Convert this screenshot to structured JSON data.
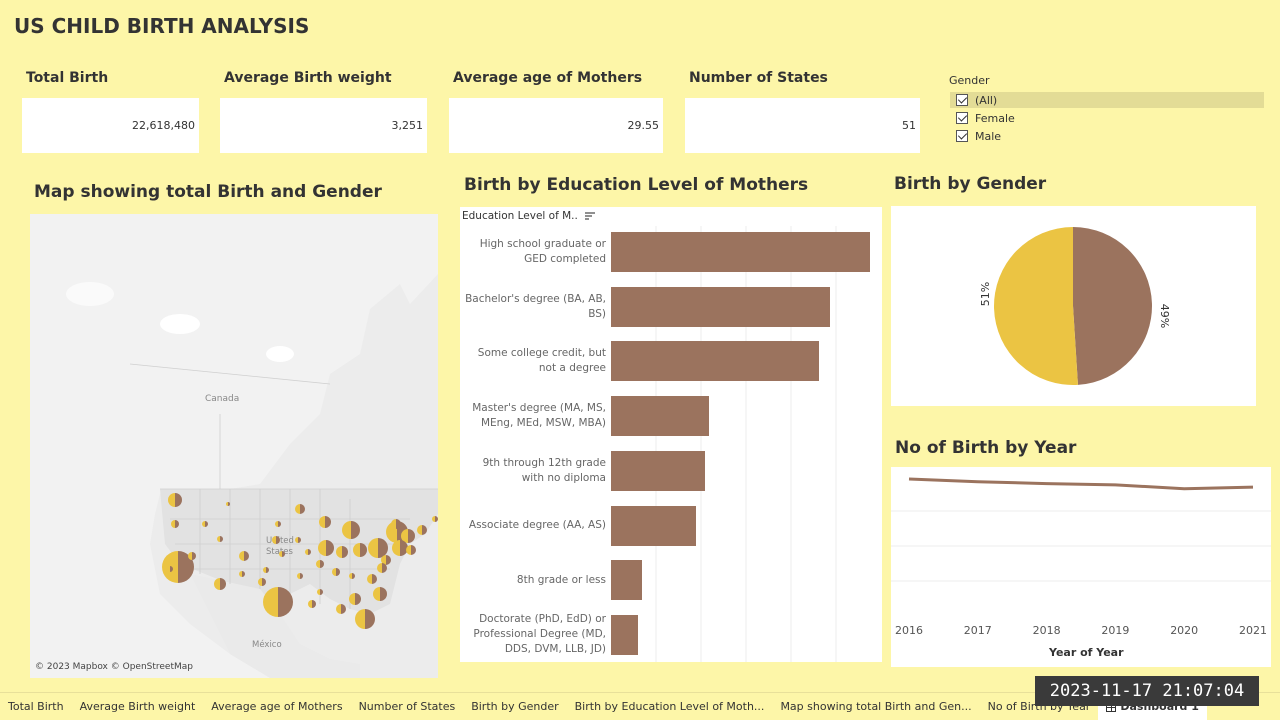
{
  "dashboard": {
    "title": "US CHILD BIRTH ANALYSIS"
  },
  "kpis": [
    {
      "label": "Total Birth",
      "value": "22,618,480"
    },
    {
      "label": "Average Birth weight",
      "value": "3,251"
    },
    {
      "label": "Average age of Mothers",
      "value": "29.55"
    },
    {
      "label": "Number of States",
      "value": "51"
    }
  ],
  "gender_filter": {
    "title": "Gender",
    "items": [
      {
        "label": "(All)",
        "checked": true,
        "selected": true
      },
      {
        "label": "Female",
        "checked": true
      },
      {
        "label": "Male",
        "checked": true
      }
    ]
  },
  "map": {
    "title": "Map showing total Birth and Gender",
    "labels": {
      "canada": "Canada",
      "us_line1": "United",
      "us_line2": "States",
      "mexico": "México"
    },
    "attribution": "© 2023 Mapbox © OpenStreetMap"
  },
  "education_chart": {
    "title": "Birth by Education Level of Mothers",
    "field_header": "Education Level of M..",
    "sort_icon": "sort-descending-icon"
  },
  "gender_chart": {
    "title": "Birth by Gender"
  },
  "year_chart": {
    "title": "No of Birth by Year",
    "xlabel": "Year of Year"
  },
  "colors": {
    "female": "#ebc443",
    "male": "#9b735e",
    "background": "#fdf6a8"
  },
  "tabs": [
    {
      "label": "Total Birth"
    },
    {
      "label": "Average Birth weight"
    },
    {
      "label": "Average age of Mothers"
    },
    {
      "label": "Number of States"
    },
    {
      "label": "Birth by Gender"
    },
    {
      "label": "Birth by Education Level of Moth..."
    },
    {
      "label": "Map showing total Birth and Gen..."
    },
    {
      "label": "No of Birth by Year"
    },
    {
      "label": "Dashboard 1",
      "active": true
    }
  ],
  "overlay": {
    "timestamp": "2023-11-17  21:07:04"
  },
  "chart_data": [
    {
      "type": "bar",
      "orientation": "horizontal",
      "categories": [
        [
          "High school graduate or",
          "GED completed"
        ],
        [
          "Bachelor's degree (BA, AB,",
          "BS)"
        ],
        [
          "Some college credit, but",
          "not a degree"
        ],
        [
          "Master's degree (MA, MS,",
          "MEng, MEd, MSW, MBA)"
        ],
        [
          "9th through 12th grade",
          "with no diploma"
        ],
        [
          "Associate degree (AA, AS)"
        ],
        [
          "8th grade or less"
        ],
        [
          "Doctorate (PhD, EdD) or",
          "Professional Degree (MD,",
          "DDS, DVM, LLB, JD)"
        ]
      ],
      "values": [
        5800000,
        4900000,
        4650000,
        2200000,
        2100000,
        1900000,
        700000,
        600000
      ],
      "xlim": [
        0,
        6000000
      ],
      "grid": true
    },
    {
      "type": "pie",
      "categories": [
        "Female",
        "Male"
      ],
      "values": [
        51,
        49
      ],
      "labels": [
        "51%",
        "49%"
      ]
    },
    {
      "type": "line",
      "x": [
        "2016",
        "2017",
        "2018",
        "2019",
        "2020",
        "2021"
      ],
      "series": [
        {
          "values": [
            3950000,
            3855000,
            3790000,
            3745000,
            3610000,
            3665000
          ]
        }
      ],
      "xlabel": "Year of Year",
      "ylim": [
        0,
        4000000
      ],
      "grid": true
    }
  ]
}
